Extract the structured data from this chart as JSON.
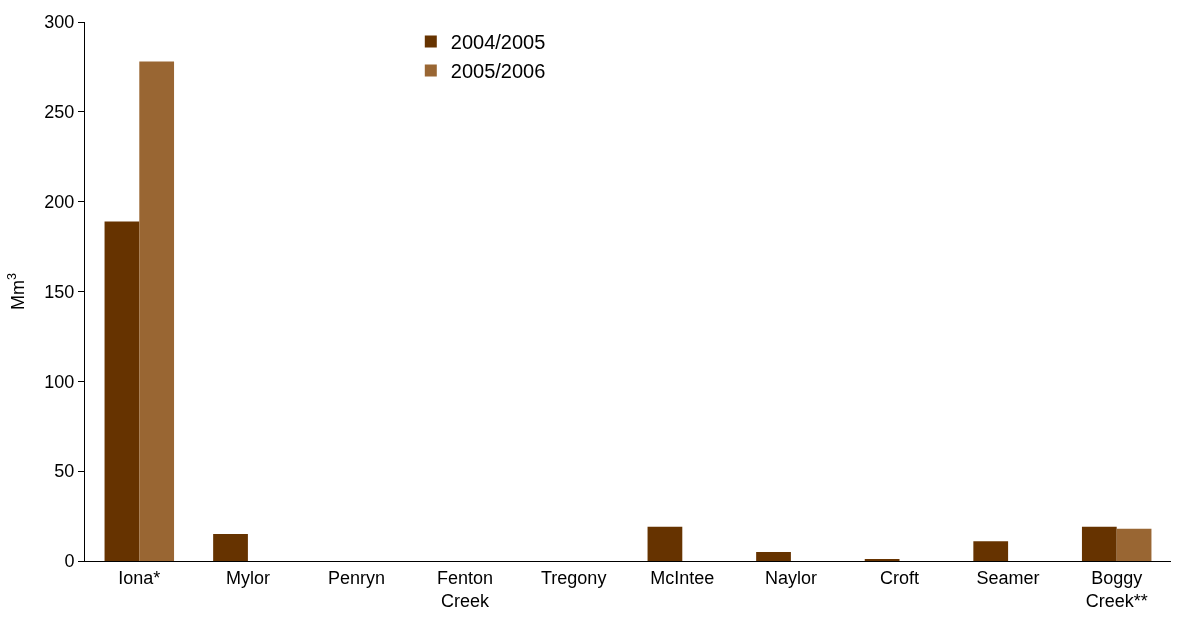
{
  "chart_data": {
    "type": "bar",
    "ylabel": "Mm$^{3}$",
    "categories": [
      "Iona*",
      "Mylor",
      "Penryn",
      "Fenton Creek",
      "Tregony",
      "McIntee",
      "Naylor",
      "Croft",
      "Seamer",
      "Boggy Creek**"
    ],
    "series": [
      {
        "name": "2004/2005",
        "color": "#663300",
        "values": [
          189,
          15,
          null,
          null,
          null,
          19,
          5,
          1,
          11,
          19
        ]
      },
      {
        "name": "2005/2006",
        "color": "#996633",
        "values": [
          278,
          null,
          null,
          null,
          null,
          null,
          null,
          null,
          null,
          18
        ]
      }
    ],
    "ylim": [
      0,
      300
    ],
    "yticks": [
      0,
      50,
      100,
      150,
      200,
      250,
      300
    ],
    "grid": false,
    "legend": "top"
  }
}
